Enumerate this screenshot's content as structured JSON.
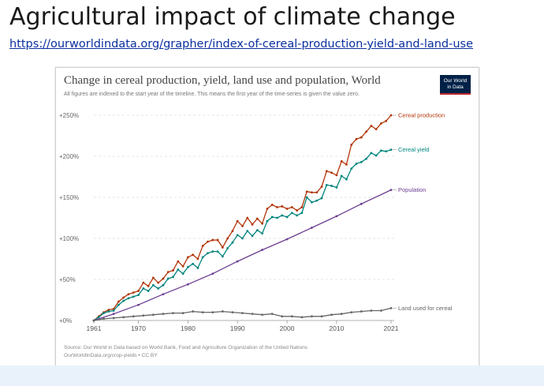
{
  "slide": {
    "title": "Agricultural impact of climate change",
    "link": "https://ourworldindata.org/grapher/index-of-cereal-production-yield-and-land-use"
  },
  "figure": {
    "logo_line1": "Our World",
    "logo_line2": "in Data",
    "source_line1": "Source: Our World in Data based on World Bank, Food and Agriculture Organization of the United Nations",
    "source_line2": "OurWorldInData.org/crop-yields • CC BY"
  },
  "chart_data": {
    "type": "line",
    "title": "Change in cereal production, yield, land use and population, World",
    "subtitle": "All figures are indexed to the start year of the timeline. This means the first year of the time-series is given the value zero.",
    "xlabel": "",
    "ylabel": "",
    "xlim": [
      1961,
      2021
    ],
    "ylim": [
      0,
      250
    ],
    "x_ticks": [
      1961,
      1970,
      1980,
      1990,
      2000,
      2010,
      2021
    ],
    "y_ticks": [
      0,
      50,
      100,
      150,
      200,
      250
    ],
    "y_tick_labels": [
      "+0%",
      "+50%",
      "+100%",
      "+150%",
      "+200%",
      "+250%"
    ],
    "grid": "horizontal-dotted",
    "legend": "line-end labels",
    "series": [
      {
        "name": "Cereal production",
        "color": "#b13507",
        "label": "Cereal production",
        "x": [
          1961,
          1962,
          1963,
          1964,
          1965,
          1966,
          1967,
          1968,
          1969,
          1970,
          1971,
          1972,
          1973,
          1974,
          1975,
          1976,
          1977,
          1978,
          1979,
          1980,
          1981,
          1982,
          1983,
          1984,
          1985,
          1986,
          1987,
          1988,
          1989,
          1990,
          1991,
          1992,
          1993,
          1994,
          1995,
          1996,
          1997,
          1998,
          1999,
          2000,
          2001,
          2002,
          2003,
          2004,
          2005,
          2006,
          2007,
          2008,
          2009,
          2010,
          2011,
          2012,
          2013,
          2014,
          2015,
          2016,
          2017,
          2018,
          2019,
          2020,
          2021
        ],
        "values": [
          0,
          5,
          10,
          13,
          14,
          23,
          28,
          32,
          34,
          36,
          46,
          42,
          52,
          46,
          51,
          59,
          61,
          72,
          66,
          77,
          80,
          75,
          91,
          96,
          98,
          98,
          89,
          100,
          109,
          121,
          115,
          125,
          117,
          124,
          118,
          136,
          141,
          138,
          139,
          136,
          138,
          134,
          138,
          157,
          156,
          156,
          163,
          182,
          180,
          177,
          194,
          190,
          214,
          221,
          223,
          230,
          237,
          233,
          240,
          243,
          250
        ]
      },
      {
        "name": "Cereal yield",
        "color": "#00847e",
        "label": "Cereal yield",
        "x": [
          1961,
          1962,
          1963,
          1964,
          1965,
          1966,
          1967,
          1968,
          1969,
          1970,
          1971,
          1972,
          1973,
          1974,
          1975,
          1976,
          1977,
          1978,
          1979,
          1980,
          1981,
          1982,
          1983,
          1984,
          1985,
          1986,
          1987,
          1988,
          1989,
          1990,
          1991,
          1992,
          1993,
          1994,
          1995,
          1996,
          1997,
          1998,
          1999,
          2000,
          2001,
          2002,
          2003,
          2004,
          2005,
          2006,
          2007,
          2008,
          2009,
          2010,
          2011,
          2012,
          2013,
          2014,
          2015,
          2016,
          2017,
          2018,
          2019,
          2020,
          2021
        ],
        "values": [
          0,
          4,
          9,
          11,
          12,
          19,
          24,
          27,
          29,
          31,
          39,
          36,
          43,
          39,
          43,
          51,
          53,
          62,
          57,
          65,
          69,
          64,
          77,
          82,
          84,
          84,
          78,
          88,
          95,
          104,
          100,
          109,
          103,
          110,
          106,
          121,
          126,
          125,
          128,
          126,
          131,
          128,
          131,
          150,
          144,
          146,
          149,
          165,
          164,
          162,
          176,
          172,
          185,
          191,
          193,
          197,
          204,
          201,
          207,
          206,
          208
        ]
      },
      {
        "name": "Population",
        "color": "#6d3e91",
        "label": "Population",
        "x": [
          1961,
          1965,
          1970,
          1975,
          1980,
          1985,
          1990,
          1995,
          2000,
          2005,
          2010,
          2015,
          2021
        ],
        "values": [
          0,
          8,
          19,
          32,
          44,
          57,
          72,
          86,
          99,
          113,
          127,
          142,
          159
        ]
      },
      {
        "name": "Land used for cereal",
        "color": "#666666",
        "label": "Land used for cereal",
        "x": [
          1961,
          1963,
          1965,
          1967,
          1969,
          1971,
          1973,
          1975,
          1977,
          1979,
          1981,
          1983,
          1985,
          1987,
          1989,
          1991,
          1993,
          1995,
          1997,
          1999,
          2001,
          2003,
          2005,
          2007,
          2009,
          2011,
          2013,
          2015,
          2017,
          2019,
          2021
        ],
        "values": [
          0,
          2,
          3,
          4,
          5,
          6,
          7,
          8,
          9,
          9,
          11,
          10,
          10,
          11,
          10,
          9,
          8,
          7,
          8,
          5,
          5,
          4,
          5,
          5,
          7,
          8,
          10,
          11,
          12,
          12,
          15
        ]
      }
    ]
  }
}
